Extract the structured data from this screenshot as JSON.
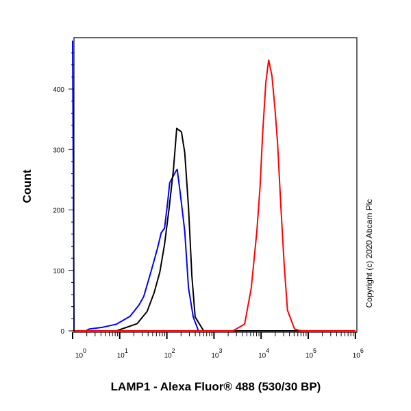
{
  "chart_data": {
    "type": "line",
    "title": "",
    "xlabel": "LAMP1 - Alexa Fluor® 488 (530/30 BP)",
    "ylabel": "Count",
    "xscale": "log",
    "xlim_log10": [
      0,
      6
    ],
    "ylim": [
      0,
      490
    ],
    "x_tick_labels": [
      {
        "base": "10",
        "exp": "0"
      },
      {
        "base": "10",
        "exp": "1"
      },
      {
        "base": "10",
        "exp": "2"
      },
      {
        "base": "10",
        "exp": "3"
      },
      {
        "base": "10",
        "exp": "4"
      },
      {
        "base": "10",
        "exp": "5"
      },
      {
        "base": "10",
        "exp": "6"
      }
    ],
    "y_ticks": [
      0,
      100,
      200,
      300,
      400
    ],
    "grid": false,
    "annotation": "Copyright (c) 2020 Abcam Plc",
    "series": [
      {
        "color": "#0000ff",
        "points_log10x_count": [
          [
            0.0,
            480
          ],
          [
            0.03,
            0
          ],
          [
            0.28,
            0
          ],
          [
            0.35,
            3
          ],
          [
            0.64,
            6
          ],
          [
            0.93,
            11
          ],
          [
            1.22,
            24
          ],
          [
            1.41,
            43
          ],
          [
            1.51,
            57
          ],
          [
            1.66,
            97
          ],
          [
            1.8,
            136
          ],
          [
            1.88,
            162
          ],
          [
            1.95,
            170
          ],
          [
            2.02,
            215
          ],
          [
            2.06,
            245
          ],
          [
            2.19,
            264
          ],
          [
            2.22,
            267
          ],
          [
            2.28,
            230
          ],
          [
            2.38,
            165
          ],
          [
            2.46,
            71
          ],
          [
            2.56,
            23
          ],
          [
            2.67,
            0
          ],
          [
            6,
            0
          ]
        ]
      },
      {
        "color": "#000000",
        "points_log10x_count": [
          [
            0.93,
            0
          ],
          [
            1.37,
            12
          ],
          [
            1.58,
            32
          ],
          [
            1.73,
            63
          ],
          [
            1.85,
            97
          ],
          [
            1.95,
            143
          ],
          [
            2.05,
            204
          ],
          [
            2.14,
            267
          ],
          [
            2.21,
            335
          ],
          [
            2.31,
            329
          ],
          [
            2.38,
            295
          ],
          [
            2.46,
            204
          ],
          [
            2.53,
            91
          ],
          [
            2.6,
            23
          ],
          [
            2.78,
            0
          ],
          [
            6,
            0
          ]
        ]
      },
      {
        "color": "#ff0000",
        "points_log10x_count": [
          [
            0,
            0
          ],
          [
            3.4,
            0
          ],
          [
            3.65,
            11
          ],
          [
            3.79,
            71
          ],
          [
            3.91,
            165
          ],
          [
            3.98,
            241
          ],
          [
            4.03,
            324
          ],
          [
            4.1,
            411
          ],
          [
            4.16,
            448
          ],
          [
            4.23,
            422
          ],
          [
            4.3,
            362
          ],
          [
            4.35,
            309
          ],
          [
            4.42,
            204
          ],
          [
            4.49,
            109
          ],
          [
            4.56,
            34
          ],
          [
            4.71,
            3
          ],
          [
            4.85,
            0
          ],
          [
            6,
            0
          ]
        ]
      }
    ]
  }
}
